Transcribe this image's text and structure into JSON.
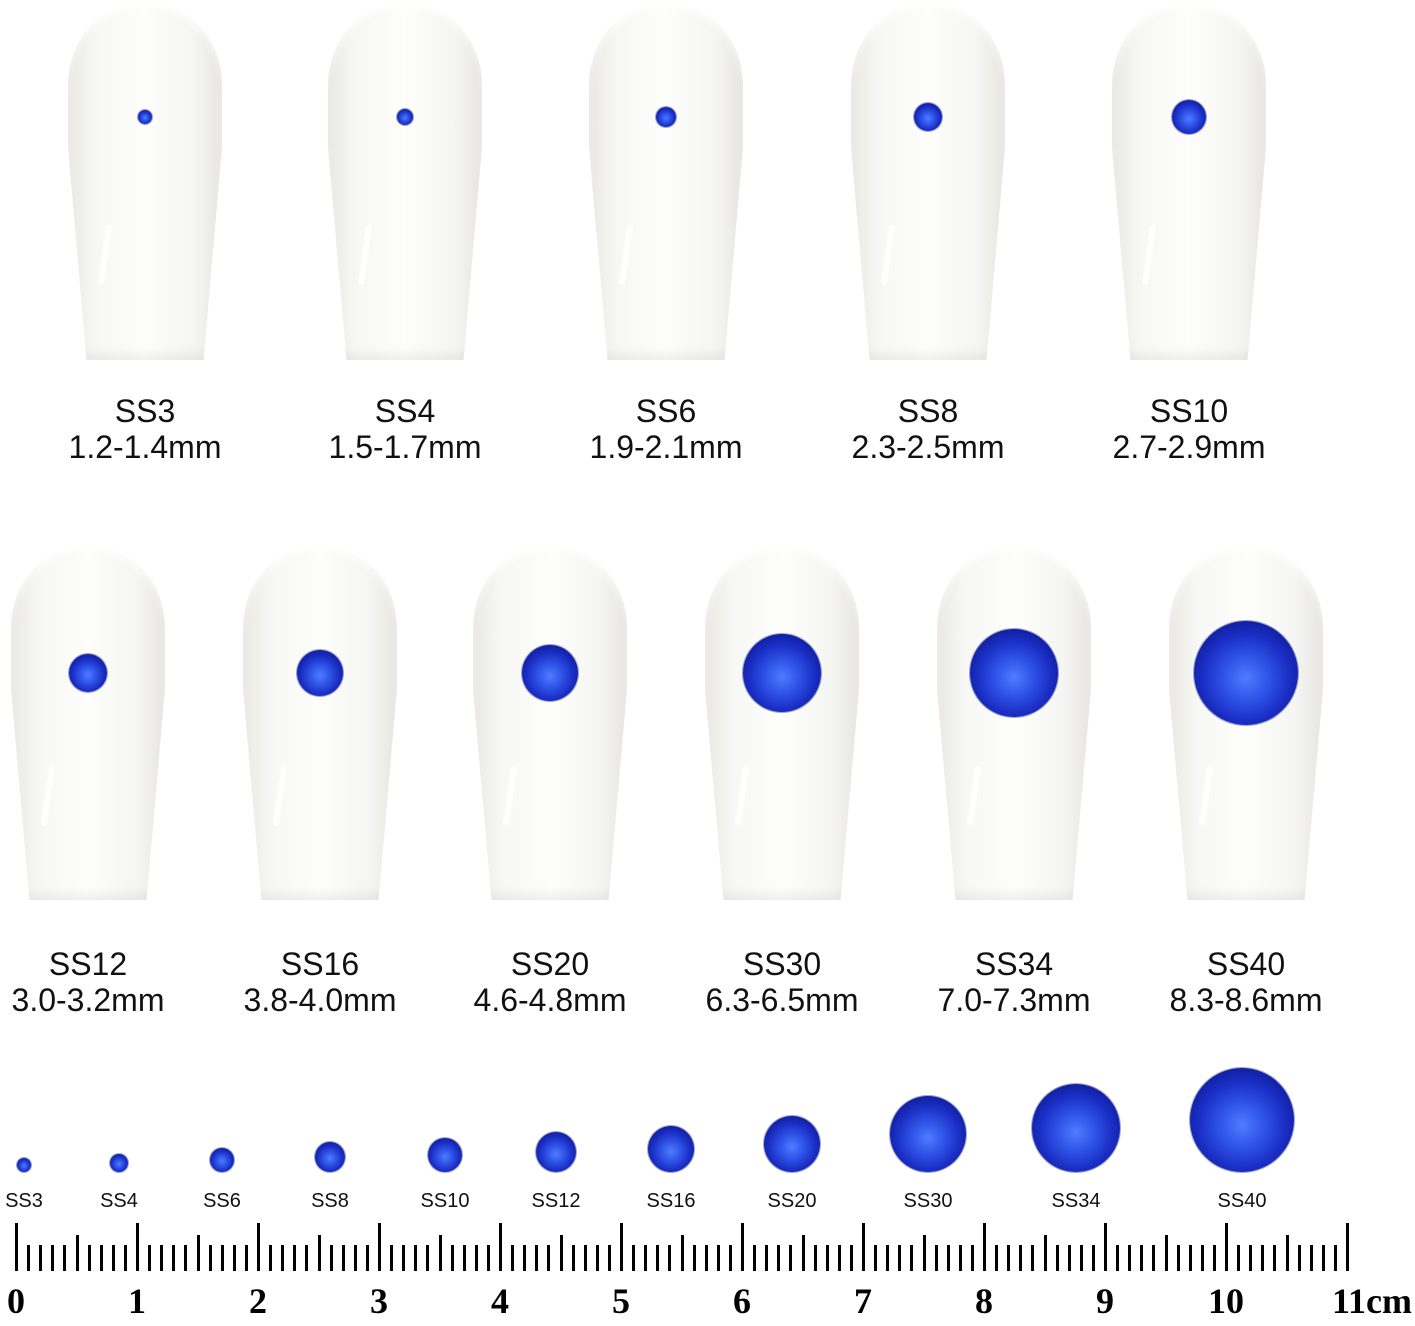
{
  "row1": [
    {
      "size": "SS3",
      "range": "1.2-1.4mm"
    },
    {
      "size": "SS4",
      "range": "1.5-1.7mm"
    },
    {
      "size": "SS6",
      "range": "1.9-2.1mm"
    },
    {
      "size": "SS8",
      "range": "2.3-2.5mm"
    },
    {
      "size": "SS10",
      "range": "2.7-2.9mm"
    }
  ],
  "row2": [
    {
      "size": "SS12",
      "range": "3.0-3.2mm"
    },
    {
      "size": "SS16",
      "range": "3.8-4.0mm"
    },
    {
      "size": "SS20",
      "range": "4.6-4.8mm"
    },
    {
      "size": "SS30",
      "range": "6.3-6.5mm"
    },
    {
      "size": "SS34",
      "range": "7.0-7.3mm"
    },
    {
      "size": "SS40",
      "range": "8.3-8.6mm"
    }
  ],
  "lineup": [
    "SS3",
    "SS4",
    "SS6",
    "SS8",
    "SS10",
    "SS12",
    "SS16",
    "SS20",
    "SS30",
    "SS34",
    "SS40"
  ],
  "ruler": {
    "labels": [
      "0",
      "1",
      "2",
      "3",
      "4",
      "5",
      "6",
      "7",
      "8",
      "9",
      "10",
      "11cm"
    ]
  },
  "colors": {
    "gem": "#1b2fc6",
    "nail": "#f7f7f5"
  }
}
